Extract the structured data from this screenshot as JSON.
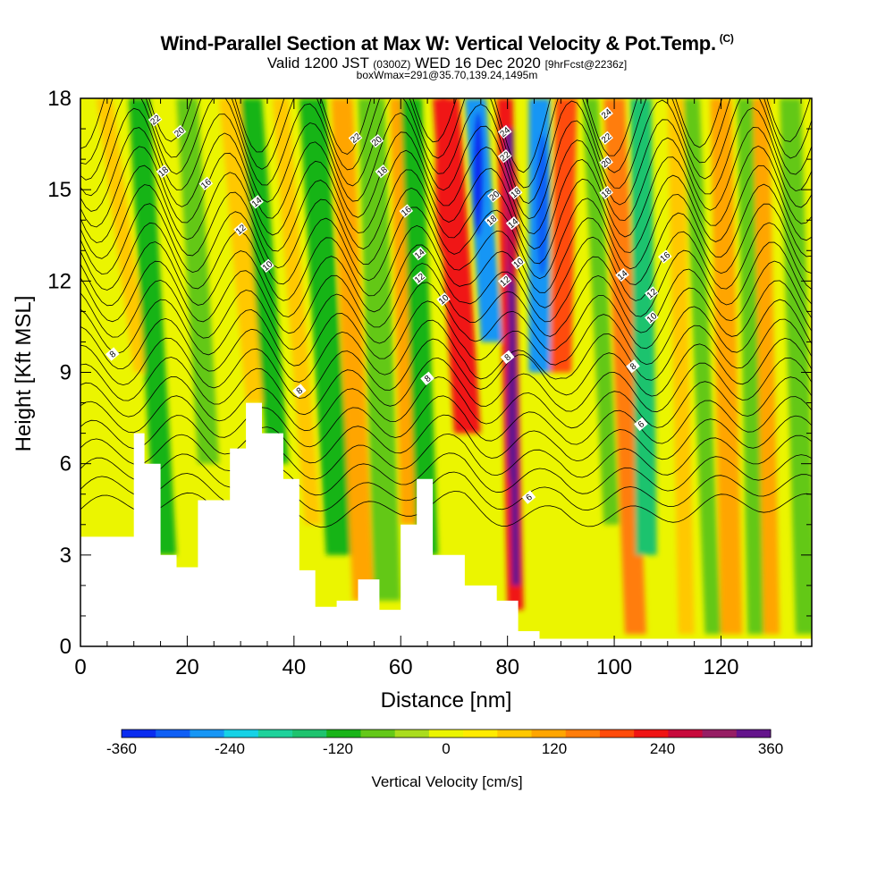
{
  "title": {
    "main": "Wind-Parallel Section at Max W: Vertical Velocity & Pot.Temp.",
    "copyright": "(C)",
    "valid_prefix": "Valid 1200 JST",
    "valid_utc": "(0300Z)",
    "valid_date": "WED 16 Dec 2020",
    "forecast": "[9hrFcst@2236z]",
    "box_info": "boxWmax=291@35.70,139.24,1495m"
  },
  "chart_data": {
    "type": "heatmap",
    "xlabel": "Distance [nm]",
    "ylabel": "Height [Kft MSL]",
    "xlim": [
      0,
      137
    ],
    "ylim": [
      0,
      18
    ],
    "x_ticks": [
      0,
      20,
      40,
      60,
      80,
      100,
      120
    ],
    "y_ticks": [
      0,
      3,
      6,
      9,
      12,
      15,
      18
    ],
    "colorbar": {
      "label": "Vertical Velocity [cm/s]",
      "levels": [
        -360,
        -330,
        -300,
        -270,
        -240,
        -210,
        -180,
        -150,
        -120,
        -90,
        -60,
        -30,
        0,
        30,
        60,
        90,
        120,
        150,
        180,
        210,
        240,
        270,
        300,
        330,
        360
      ],
      "tick_labels": [
        "-360",
        "-240",
        "-120",
        "0",
        "120",
        "240",
        "360"
      ],
      "tick_values": [
        -360,
        -240,
        -120,
        0,
        120,
        240,
        360
      ],
      "colors": [
        "#0a2cf0",
        "#0f5ff5",
        "#1796f5",
        "#16d2e6",
        "#1ed29b",
        "#1ec36e",
        "#19b419",
        "#64c819",
        "#aadc1e",
        "#ebf500",
        "#ffeb00",
        "#ffc800",
        "#ffa500",
        "#ff7d0a",
        "#ff4b0a",
        "#f01414",
        "#c80a3c",
        "#961e64",
        "#64148c"
      ]
    },
    "vertical_velocity_extrema": [
      {
        "x": 68,
        "w": 230
      },
      {
        "x": 74,
        "w": -320
      },
      {
        "x": 81,
        "w": 320
      },
      {
        "x": 86,
        "w": -300
      },
      {
        "x": 92,
        "w": 190
      }
    ],
    "terrain_kft": [
      [
        0,
        3.6
      ],
      [
        10,
        7.0
      ],
      [
        12,
        6.0
      ],
      [
        15,
        3.0
      ],
      [
        18,
        2.6
      ],
      [
        22,
        4.8
      ],
      [
        28,
        6.5
      ],
      [
        31,
        8.0
      ],
      [
        34,
        7.0
      ],
      [
        38,
        5.5
      ],
      [
        41,
        2.5
      ],
      [
        44,
        1.3
      ],
      [
        48,
        1.5
      ],
      [
        52,
        2.2
      ],
      [
        56,
        1.2
      ],
      [
        60,
        4.0
      ],
      [
        63,
        5.5
      ],
      [
        66,
        3.0
      ],
      [
        72,
        2.0
      ],
      [
        78,
        1.5
      ],
      [
        82,
        0.5
      ],
      [
        86,
        0.25
      ],
      [
        90,
        0.25
      ],
      [
        137,
        0.25
      ]
    ],
    "theta_contour_labels": [
      {
        "text": "22",
        "x": 14.0,
        "y": 17.3
      },
      {
        "text": "20",
        "x": 18.5,
        "y": 16.9
      },
      {
        "text": "18",
        "x": 15.5,
        "y": 15.6
      },
      {
        "text": "16",
        "x": 23.5,
        "y": 15.2
      },
      {
        "text": "14",
        "x": 33.0,
        "y": 14.6
      },
      {
        "text": "12",
        "x": 30.0,
        "y": 13.7
      },
      {
        "text": "10",
        "x": 35.0,
        "y": 12.5
      },
      {
        "text": "8",
        "x": 6.0,
        "y": 9.6
      },
      {
        "text": "22",
        "x": 51.5,
        "y": 16.7
      },
      {
        "text": "20",
        "x": 55.5,
        "y": 16.6
      },
      {
        "text": "18",
        "x": 56.5,
        "y": 15.6
      },
      {
        "text": "16",
        "x": 61.0,
        "y": 14.3
      },
      {
        "text": "14",
        "x": 63.5,
        "y": 12.9
      },
      {
        "text": "12",
        "x": 63.5,
        "y": 12.1
      },
      {
        "text": "10",
        "x": 68.0,
        "y": 11.4
      },
      {
        "text": "8",
        "x": 65.0,
        "y": 8.8
      },
      {
        "text": "24",
        "x": 79.5,
        "y": 16.9
      },
      {
        "text": "22",
        "x": 79.5,
        "y": 16.1
      },
      {
        "text": "20",
        "x": 77.5,
        "y": 14.8
      },
      {
        "text": "18",
        "x": 81.5,
        "y": 14.9
      },
      {
        "text": "18",
        "x": 77.0,
        "y": 14.0
      },
      {
        "text": "14",
        "x": 81.0,
        "y": 13.9
      },
      {
        "text": "10",
        "x": 82.0,
        "y": 12.6
      },
      {
        "text": "12",
        "x": 79.5,
        "y": 12.0
      },
      {
        "text": "8",
        "x": 80.0,
        "y": 9.5
      },
      {
        "text": "6",
        "x": 84.0,
        "y": 4.9
      },
      {
        "text": "24",
        "x": 98.5,
        "y": 17.5
      },
      {
        "text": "22",
        "x": 98.5,
        "y": 16.7
      },
      {
        "text": "20",
        "x": 98.5,
        "y": 15.9
      },
      {
        "text": "18",
        "x": 98.5,
        "y": 14.9
      },
      {
        "text": "16",
        "x": 109.5,
        "y": 12.8
      },
      {
        "text": "14",
        "x": 101.5,
        "y": 12.2
      },
      {
        "text": "12",
        "x": 107.0,
        "y": 11.6
      },
      {
        "text": "10",
        "x": 107.0,
        "y": 10.8
      },
      {
        "text": "8",
        "x": 103.5,
        "y": 9.2
      },
      {
        "text": "6",
        "x": 105.0,
        "y": 7.3
      },
      {
        "text": "8",
        "x": 41.0,
        "y": 8.4
      }
    ]
  }
}
